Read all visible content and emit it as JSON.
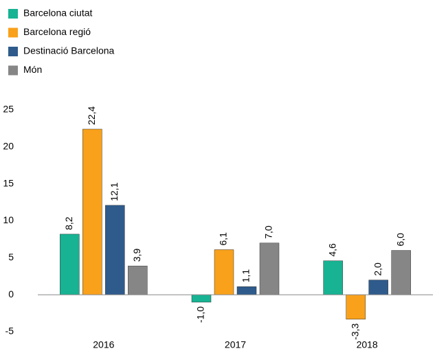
{
  "chart_data": {
    "type": "bar",
    "categories": [
      "2016",
      "2017",
      "2018"
    ],
    "series": [
      {
        "name": "Barcelona ciutat",
        "color": "#17b393",
        "values": [
          8.2,
          -1.0,
          4.6
        ],
        "value_labels": [
          "8,2",
          "-1,0",
          "4,6"
        ]
      },
      {
        "name": "Barcelona regió",
        "color": "#f9a11b",
        "values": [
          22.4,
          6.1,
          -3.3
        ],
        "value_labels": [
          "22,4",
          "6,1",
          "-3,3"
        ]
      },
      {
        "name": "Destinació Barcelona",
        "color": "#2e5b8c",
        "values": [
          12.1,
          1.1,
          2.0
        ],
        "value_labels": [
          "12,1",
          "1,1",
          "2,0"
        ]
      },
      {
        "name": "Món",
        "color": "#868686",
        "values": [
          3.9,
          7.0,
          6.0
        ],
        "value_labels": [
          "3,9",
          "7,0",
          "6,0"
        ]
      }
    ],
    "ylim": [
      -5,
      25
    ],
    "yticks": [
      -5,
      0,
      5,
      10,
      15,
      20,
      25
    ],
    "grid": false,
    "legend": "top-left"
  }
}
